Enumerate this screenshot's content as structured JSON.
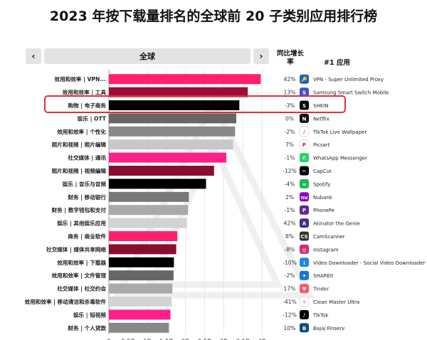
{
  "title": "2023 年按下载量排名的全球前 20 子类别应用排行榜",
  "nav": {
    "prev": "‹",
    "next": "›",
    "region": "全球"
  },
  "columns": {
    "growth": "同比增长率",
    "top_app": "#1 应用"
  },
  "chart_data": {
    "type": "bar",
    "orientation": "horizontal",
    "title": "2023 年按下载量排名的全球前 20 子类别应用排行榜",
    "xlabel": "",
    "ylabel": "",
    "xlim": [
      0,
      4
    ],
    "x_ticks": [
      "0",
      "0.5B",
      "1B",
      "1.5B",
      "2B",
      "2.5B",
      "3B",
      "3.5B",
      "4B"
    ],
    "grid": true,
    "categories": [
      "效用和效率 | VPN...",
      "效用和效率 | 工具",
      "购物 | 电子商务",
      "娱乐 | OTT",
      "效用和效率 | 个性化",
      "照片和视频 | 照片编辑",
      "社交媒体 | 通讯",
      "照片和视频 | 视频编辑",
      "娱乐 | 音乐与音频",
      "财务 | 移动银行",
      "财务 | 数字钱包和支付",
      "娱乐 | 其他娱乐应用",
      "商务 | 商业软件",
      "社交媒体 | 媒体共享网络",
      "效用和效率 | 下载器",
      "效用和效率 | 文件管理",
      "社交媒体 | 社交约会",
      "效用和效率 | 移动清洁和杀毒软件",
      "娱乐 | 短视频",
      "财务 | 个人贷款"
    ],
    "values": [
      3.97,
      3.63,
      3.41,
      3.33,
      3.3,
      3.25,
      3.07,
      2.75,
      2.54,
      2.09,
      2.07,
      2.04,
      1.79,
      1.76,
      1.7,
      1.69,
      1.66,
      1.64,
      1.61,
      1.57
    ],
    "bar_colors": [
      "#ff1f6b",
      "#9e0c3a",
      "#000000",
      "#666666",
      "#888888",
      "#c8c8c8",
      "#ff1f8a",
      "#8a0d2f",
      "#000000",
      "#777777",
      "#aaaaaa",
      "#d3d3d3",
      "#ff1f6b",
      "#8a0d2f",
      "#000000",
      "#666666",
      "#aaaaaa",
      "#d3d3d3",
      "#ff1f8a",
      "#888888"
    ],
    "growth": [
      "42%",
      "13%",
      "-3%",
      "0%",
      "-2%",
      "7%",
      "-1%",
      "-12%",
      "-4%",
      "2%",
      "-1%",
      "42%",
      "8%",
      "-8%",
      "-10%",
      "-2%",
      "17%",
      "-41%",
      "-12%",
      "10%"
    ],
    "top_apps": [
      "VPN - Super Unlimited Proxy",
      "Samsung Smart Switch Mobile",
      "SHEIN",
      "Netflix",
      "TikTok Live Wallpaper",
      "Picsart",
      "WhatsApp Messenger",
      "CapCut",
      "Spotify",
      "Nubank",
      "PhonePe",
      "Akinator the Genie",
      "CamScanner",
      "Instagram",
      "Video Downloader - Social Video Downloader",
      "SHAREit",
      "Tinder",
      "Clean Master Ultra",
      "TikTok",
      "Bajaj Finserv"
    ],
    "app_icons": [
      {
        "name": "vpn-key-icon",
        "color": "#1565c0",
        "glyph": "🔑"
      },
      {
        "name": "samsung-switch-icon",
        "color": "#3b4fd6",
        "glyph": "S"
      },
      {
        "name": "shein-icon",
        "color": "#000000",
        "glyph": "S"
      },
      {
        "name": "netflix-icon",
        "color": "#111111",
        "glyph": "N"
      },
      {
        "name": "tiktok-wallpaper-icon",
        "color": "#ffffff",
        "glyph": "♪"
      },
      {
        "name": "picsart-icon",
        "color": "#ffffff",
        "glyph": "P"
      },
      {
        "name": "whatsapp-icon",
        "color": "#25d366",
        "glyph": "✆"
      },
      {
        "name": "capcut-icon",
        "color": "#000000",
        "glyph": "✂"
      },
      {
        "name": "spotify-icon",
        "color": "#1db954",
        "glyph": "≈"
      },
      {
        "name": "nubank-icon",
        "color": "#8a05be",
        "glyph": "nu"
      },
      {
        "name": "phonepe-icon",
        "color": "#5f259f",
        "glyph": "P"
      },
      {
        "name": "akinator-icon",
        "color": "#4a2b8a",
        "glyph": "A"
      },
      {
        "name": "camscanner-icon",
        "color": "#333333",
        "glyph": "CS"
      },
      {
        "name": "instagram-icon",
        "color": "#d62976",
        "glyph": "◎"
      },
      {
        "name": "video-downloader-icon",
        "color": "#1e88e5",
        "glyph": "↓"
      },
      {
        "name": "shareit-icon",
        "color": "#1976d2",
        "glyph": "✦"
      },
      {
        "name": "tinder-icon",
        "color": "#ff5864",
        "glyph": "♥"
      },
      {
        "name": "clean-master-icon",
        "color": "#ffffff",
        "glyph": "✧"
      },
      {
        "name": "tiktok-icon",
        "color": "#000000",
        "glyph": "♪"
      },
      {
        "name": "bajaj-finserv-icon",
        "color": "#0f4c81",
        "glyph": "B"
      }
    ],
    "highlight_index": 2
  }
}
